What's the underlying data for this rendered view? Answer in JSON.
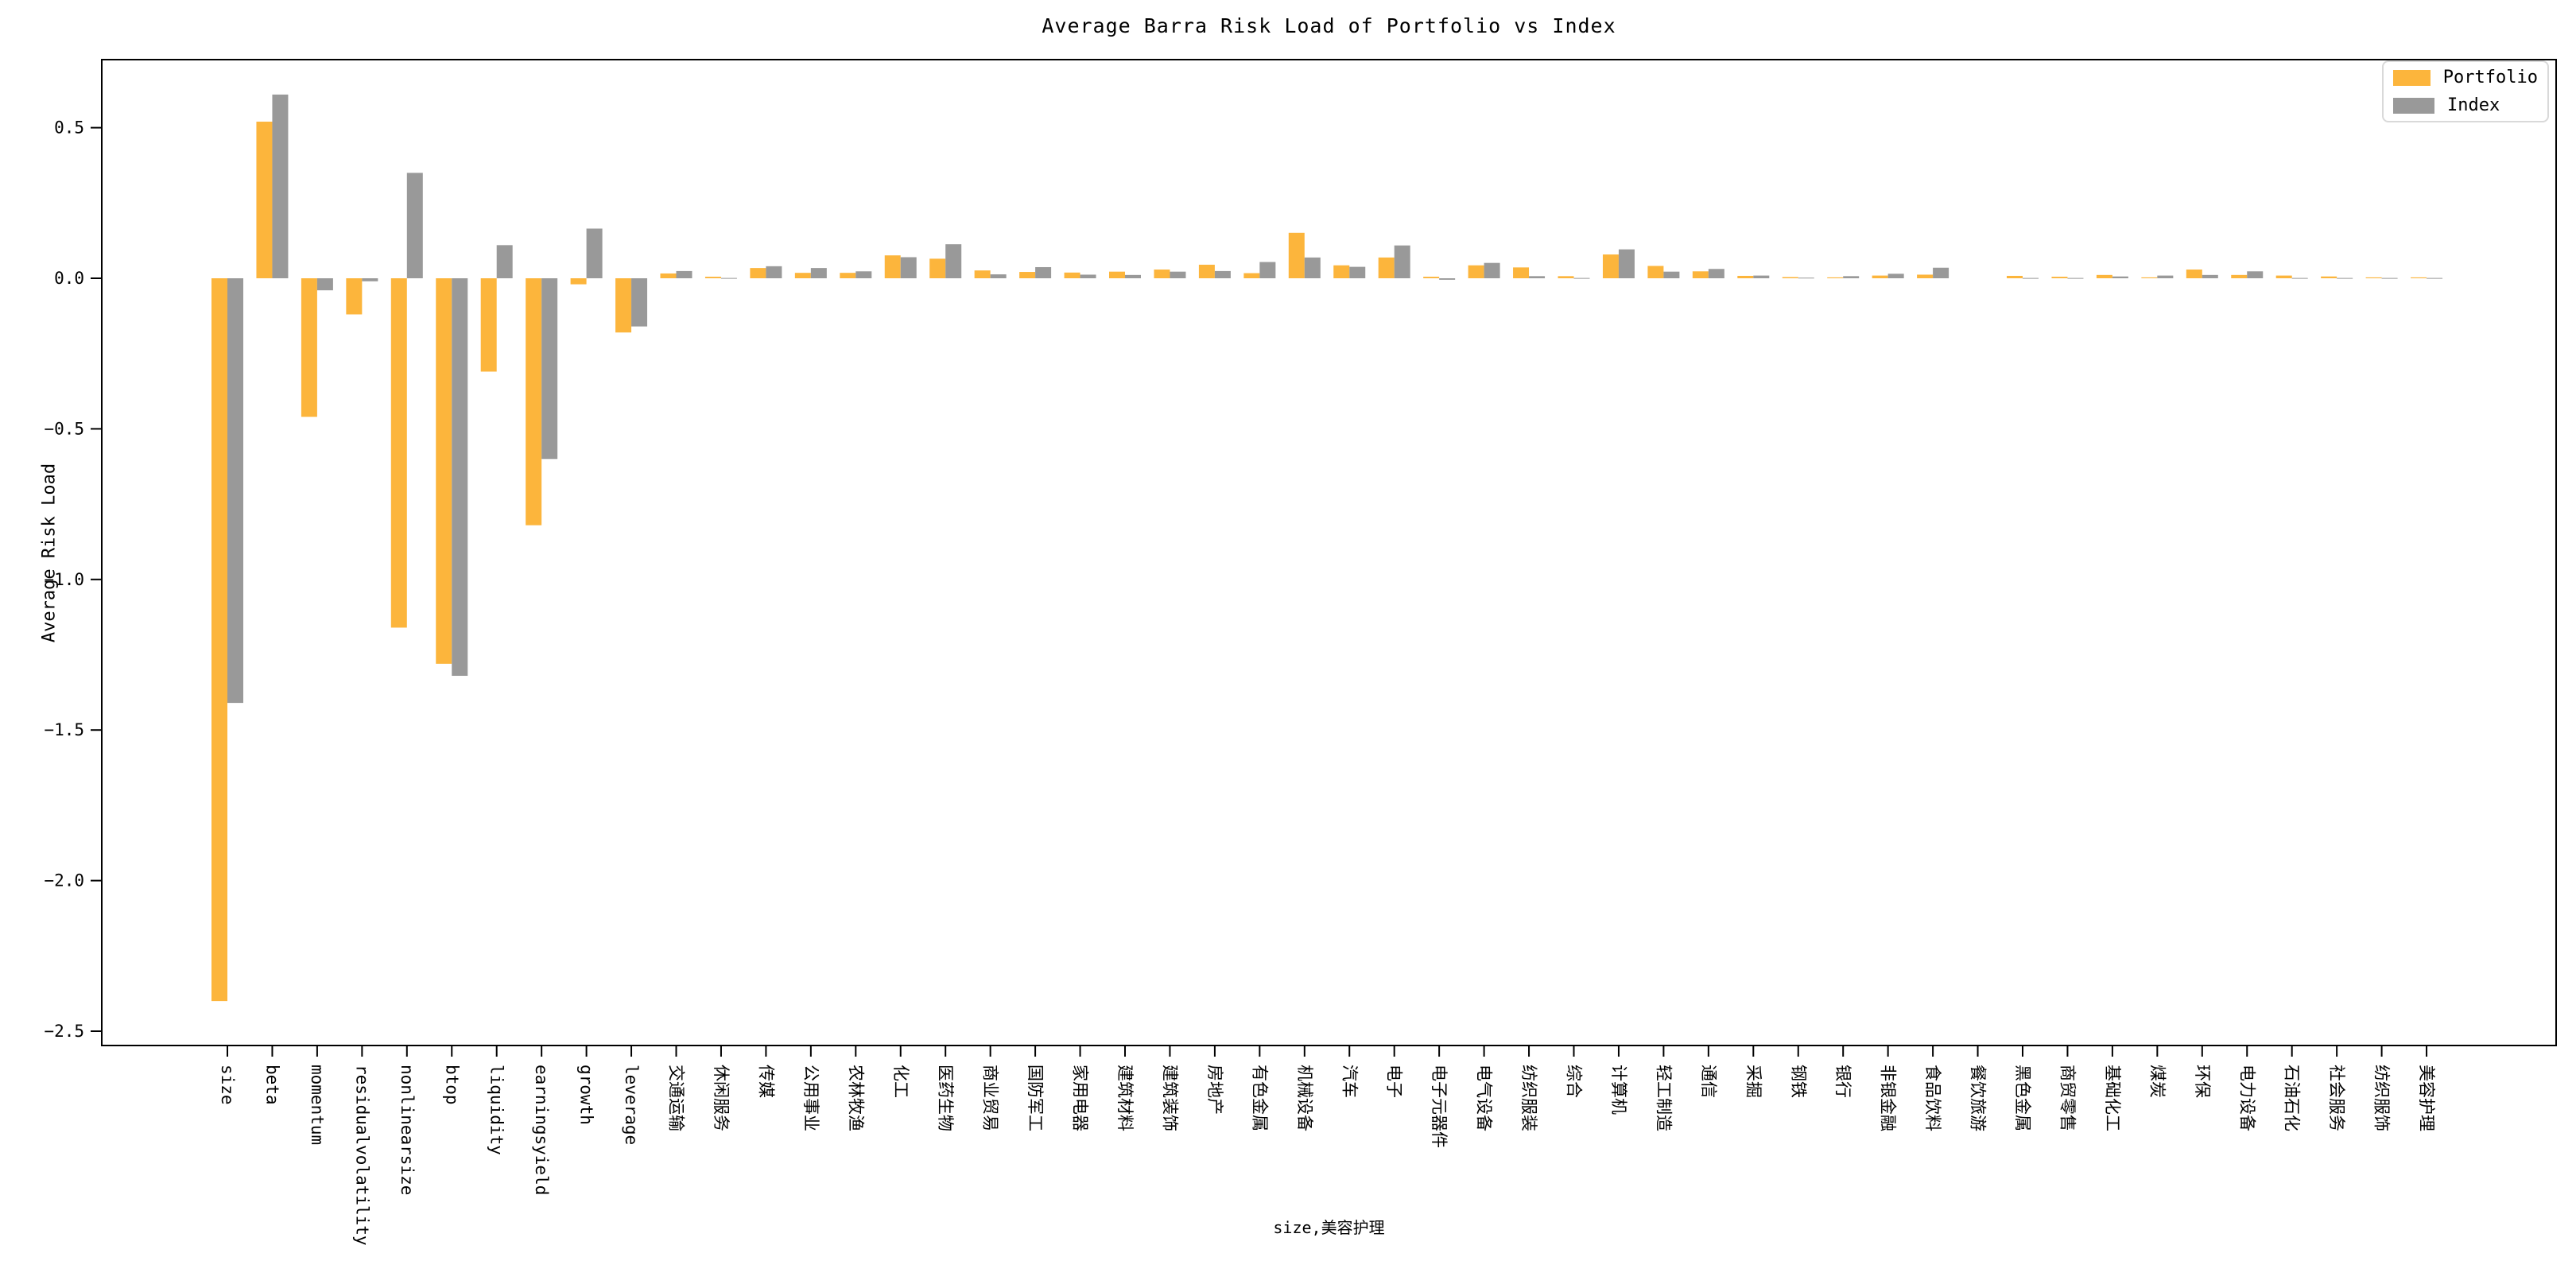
{
  "chart_data": {
    "type": "bar",
    "title": "Average Barra Risk Load of Portfolio vs Index",
    "xlabel": "size,美容护理",
    "ylabel": "Average Risk Load",
    "legend_position": "upper-right",
    "grid": false,
    "ylim": [
      -2.55,
      0.73
    ],
    "ytick_values": [
      0.5,
      0.0,
      -0.5,
      -1.0,
      -1.5,
      -2.0,
      -2.5
    ],
    "ytick_labels": [
      "0.5",
      "0.0",
      "−0.5",
      "−1.0",
      "−1.5",
      "−2.0",
      "−2.5"
    ],
    "categories": [
      "size",
      "beta",
      "momentum",
      "residualvolatility",
      "nonlinearsize",
      "btop",
      "liquidity",
      "earningsyield",
      "growth",
      "leverage",
      "交通运输",
      "休闲服务",
      "传媒",
      "公用事业",
      "农林牧渔",
      "化工",
      "医药生物",
      "商业贸易",
      "国防军工",
      "家用电器",
      "建筑材料",
      "建筑装饰",
      "房地产",
      "有色金属",
      "机械设备",
      "汽车",
      "电子",
      "电子元器件",
      "电气设备",
      "纺织服装",
      "综合",
      "计算机",
      "轻工制造",
      "通信",
      "采掘",
      "钢铁",
      "银行",
      "非银金融",
      "食品饮料",
      "餐饮旅游",
      "黑色金属",
      "商贸零售",
      "基础化工",
      "煤炭",
      "环保",
      "电力设备",
      "石油石化",
      "社会服务",
      "纺织服饰",
      "美容护理"
    ],
    "series": [
      {
        "name": "Portfolio",
        "color": "#FCB53C",
        "values": [
          -2.4,
          0.52,
          -0.46,
          -0.12,
          -1.16,
          -1.28,
          -0.31,
          -0.82,
          -0.02,
          -0.18,
          0.016,
          0.005,
          0.034,
          0.018,
          0.018,
          0.076,
          0.065,
          0.026,
          0.021,
          0.019,
          0.022,
          0.029,
          0.045,
          0.017,
          0.151,
          0.043,
          0.069,
          0.005,
          0.043,
          0.036,
          0.007,
          0.079,
          0.041,
          0.023,
          0.008,
          0.004,
          0.003,
          0.009,
          0.012,
          0.0,
          0.008,
          0.005,
          0.011,
          0.003,
          0.029,
          0.011,
          0.009,
          0.006,
          0.003,
          0.003
        ]
      },
      {
        "name": "Index",
        "color": "#999999",
        "values": [
          -1.41,
          0.61,
          -0.04,
          -0.01,
          0.35,
          -1.32,
          0.11,
          -0.6,
          0.165,
          -0.16,
          0.024,
          0.001,
          0.04,
          0.034,
          0.023,
          0.07,
          0.113,
          0.013,
          0.037,
          0.012,
          0.011,
          0.022,
          0.024,
          0.054,
          0.069,
          0.038,
          0.109,
          -0.005,
          0.051,
          0.007,
          0.001,
          0.096,
          0.022,
          0.031,
          0.009,
          0.002,
          0.007,
          0.015,
          0.035,
          0.0,
          0.001,
          0.001,
          0.006,
          0.009,
          0.011,
          0.023,
          0.001,
          0.001,
          0.001,
          0.001
        ]
      }
    ]
  },
  "legend": {
    "portfolio_label": "Portfolio",
    "index_label": "Index"
  }
}
